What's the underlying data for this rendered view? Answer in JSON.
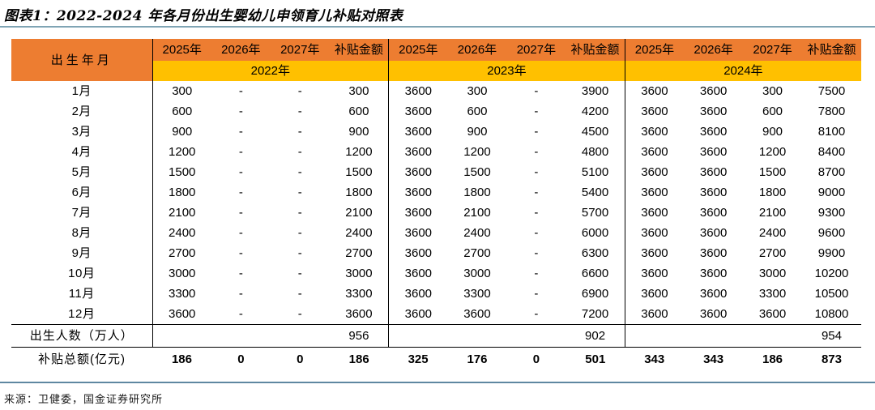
{
  "title": "图表1：2022-2024 年各月份出生婴幼儿申领育儿补贴对照表",
  "source": "来源：卫健委，国金证券研究所",
  "colors": {
    "header_orange": "#ED7D31",
    "header_yellow": "#FFC000",
    "rule_top": "#7FA4B4",
    "rule_bottom": "#5E87A1"
  },
  "table": {
    "corner_label": "出生年月",
    "sub_columns": [
      "2025年",
      "2026年",
      "2027年",
      "补贴金额"
    ],
    "group_years": [
      "2022年",
      "2023年",
      "2024年"
    ],
    "month_rows": [
      {
        "label": "1月",
        "values": [
          "300",
          "-",
          "-",
          "300",
          "3600",
          "300",
          "-",
          "3900",
          "3600",
          "3600",
          "300",
          "7500"
        ]
      },
      {
        "label": "2月",
        "values": [
          "600",
          "-",
          "-",
          "600",
          "3600",
          "600",
          "-",
          "4200",
          "3600",
          "3600",
          "600",
          "7800"
        ]
      },
      {
        "label": "3月",
        "values": [
          "900",
          "-",
          "-",
          "900",
          "3600",
          "900",
          "-",
          "4500",
          "3600",
          "3600",
          "900",
          "8100"
        ]
      },
      {
        "label": "4月",
        "values": [
          "1200",
          "-",
          "-",
          "1200",
          "3600",
          "1200",
          "-",
          "4800",
          "3600",
          "3600",
          "1200",
          "8400"
        ]
      },
      {
        "label": "5月",
        "values": [
          "1500",
          "-",
          "-",
          "1500",
          "3600",
          "1500",
          "-",
          "5100",
          "3600",
          "3600",
          "1500",
          "8700"
        ]
      },
      {
        "label": "6月",
        "values": [
          "1800",
          "-",
          "-",
          "1800",
          "3600",
          "1800",
          "-",
          "5400",
          "3600",
          "3600",
          "1800",
          "9000"
        ]
      },
      {
        "label": "7月",
        "values": [
          "2100",
          "-",
          "-",
          "2100",
          "3600",
          "2100",
          "-",
          "5700",
          "3600",
          "3600",
          "2100",
          "9300"
        ]
      },
      {
        "label": "8月",
        "values": [
          "2400",
          "-",
          "-",
          "2400",
          "3600",
          "2400",
          "-",
          "6000",
          "3600",
          "3600",
          "2400",
          "9600"
        ]
      },
      {
        "label": "9月",
        "values": [
          "2700",
          "-",
          "-",
          "2700",
          "3600",
          "2700",
          "-",
          "6300",
          "3600",
          "3600",
          "2700",
          "9900"
        ]
      },
      {
        "label": "10月",
        "values": [
          "3000",
          "-",
          "-",
          "3000",
          "3600",
          "3000",
          "-",
          "6600",
          "3600",
          "3600",
          "3000",
          "10200"
        ]
      },
      {
        "label": "11月",
        "values": [
          "3300",
          "-",
          "-",
          "3300",
          "3600",
          "3300",
          "-",
          "6900",
          "3600",
          "3600",
          "3300",
          "10500"
        ]
      },
      {
        "label": "12月",
        "values": [
          "3600",
          "-",
          "-",
          "3600",
          "3600",
          "3600",
          "-",
          "7200",
          "3600",
          "3600",
          "3600",
          "10800"
        ]
      }
    ],
    "births_row": {
      "label": "出生人数（万人）",
      "values": [
        "956",
        "902",
        "954"
      ]
    },
    "totals_row": {
      "label": "补贴总额(亿元)",
      "values": [
        "186",
        "0",
        "0",
        "186",
        "325",
        "176",
        "0",
        "501",
        "343",
        "343",
        "186",
        "873"
      ]
    }
  }
}
